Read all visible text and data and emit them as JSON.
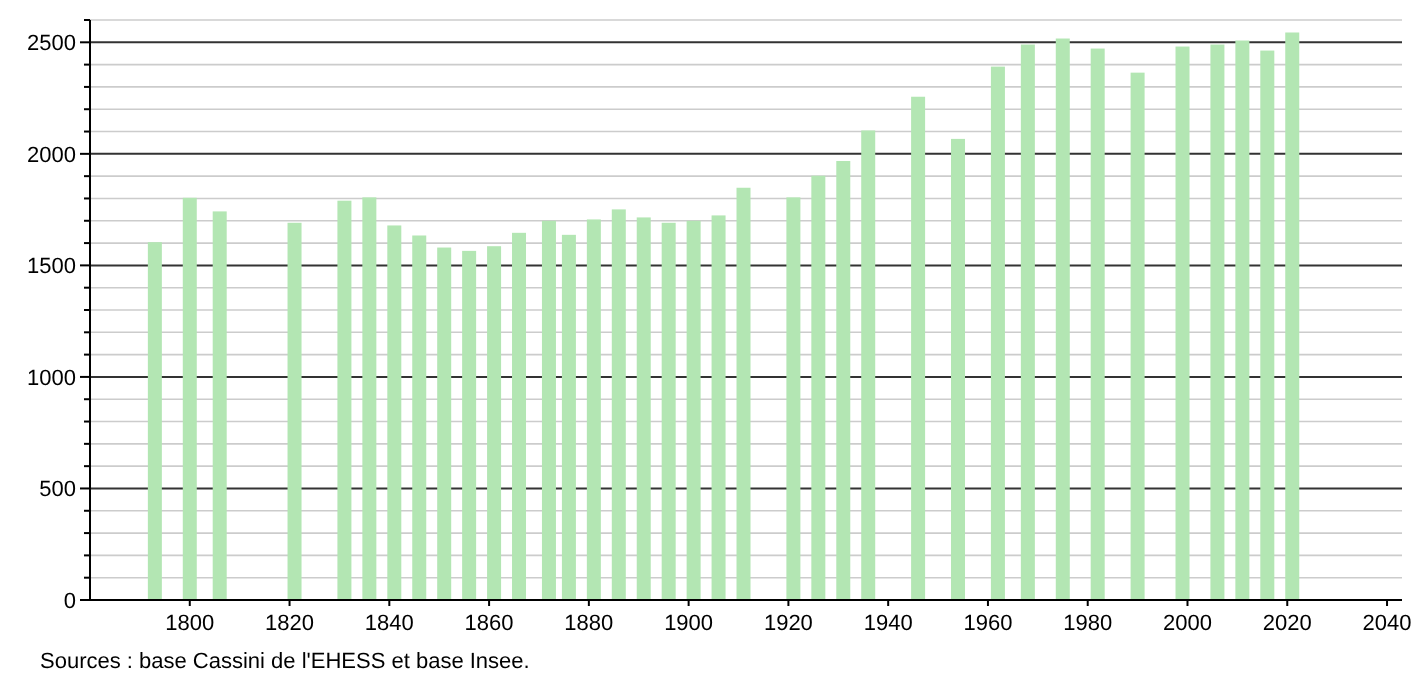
{
  "chart_data": {
    "type": "bar",
    "x": [
      1793,
      1800,
      1806,
      1821,
      1831,
      1836,
      1841,
      1846,
      1851,
      1856,
      1861,
      1866,
      1872,
      1876,
      1881,
      1886,
      1891,
      1896,
      1901,
      1906,
      1911,
      1921,
      1926,
      1931,
      1936,
      1946,
      1954,
      1962,
      1968,
      1975,
      1982,
      1990,
      1999,
      2006,
      2011,
      2016,
      2021
    ],
    "values": [
      1604,
      1803,
      1742,
      1691,
      1790,
      1805,
      1679,
      1634,
      1580,
      1565,
      1586,
      1646,
      1700,
      1637,
      1706,
      1751,
      1715,
      1691,
      1700,
      1724,
      1848,
      1805,
      1902,
      1968,
      2105,
      2256,
      2067,
      2391,
      2490,
      2517,
      2472,
      2364,
      2481,
      2490,
      2508,
      2463,
      2544
    ],
    "color": "#b3e6b3",
    "xlim": [
      1780,
      2043
    ],
    "xticks": [
      1800,
      1820,
      1840,
      1860,
      1880,
      1900,
      1920,
      1940,
      1960,
      1980,
      2000,
      2020,
      2040
    ],
    "ylim": [
      0,
      2600
    ],
    "yticks": [
      0,
      {
        "value": 100,
        "label": null
      },
      {
        "value": 200,
        "label": null
      },
      {
        "value": 300,
        "label": null
      },
      {
        "value": 400,
        "label": null
      },
      500,
      {
        "value": 600,
        "label": null
      },
      {
        "value": 700,
        "label": null
      },
      {
        "value": 800,
        "label": null
      },
      {
        "value": 900,
        "label": null
      },
      1000,
      {
        "value": 1100,
        "label": null
      },
      {
        "value": 1200,
        "label": null
      },
      {
        "value": 1300,
        "label": null
      },
      {
        "value": 1400,
        "label": null
      },
      1500,
      {
        "value": 1600,
        "label": null
      },
      {
        "value": 1700,
        "label": null
      },
      {
        "value": 1800,
        "label": null
      },
      {
        "value": 1900,
        "label": null
      },
      2000,
      {
        "value": 2100,
        "label": null
      },
      {
        "value": 2200,
        "label": null
      },
      {
        "value": 2300,
        "label": null
      },
      {
        "value": 2400,
        "label": null
      },
      2500,
      {
        "value": 2600,
        "label": null
      }
    ],
    "grid": true,
    "annotations": [
      "Sources : base Cassini de l'EHESS et base Insee."
    ]
  }
}
